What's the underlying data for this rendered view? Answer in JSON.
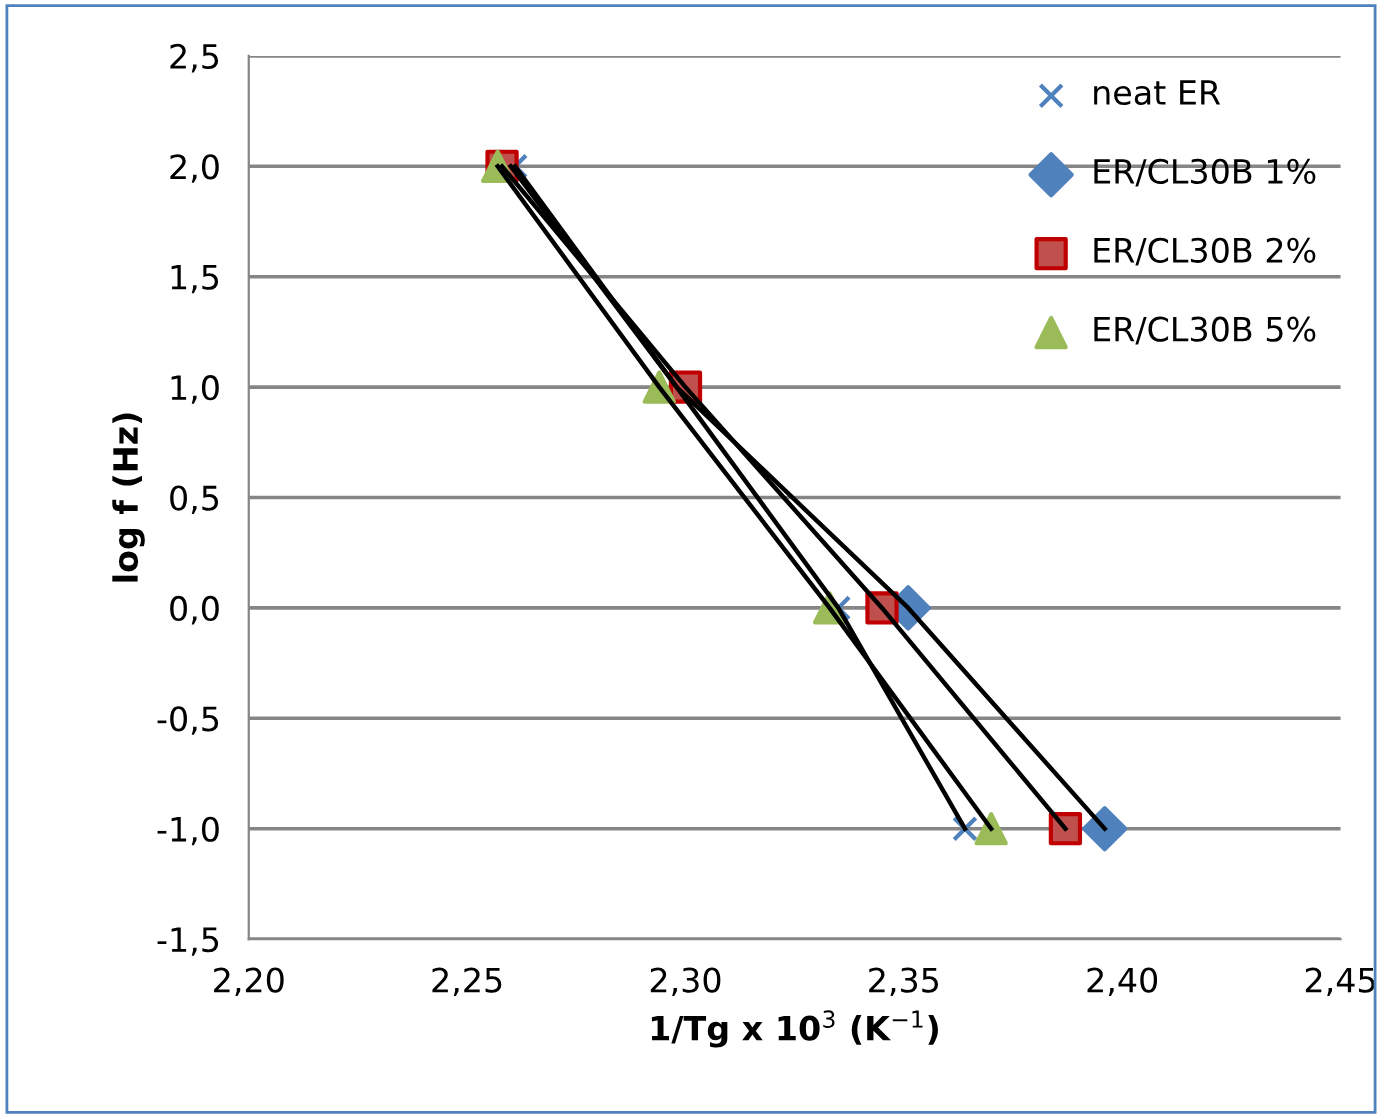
{
  "chart_data": {
    "type": "scatter",
    "xlabel": "1/Tg x 10$^{3}$ (K$^{−1}$)",
    "ylabel": "log f (Hz)",
    "xlim": [
      2.2,
      2.45
    ],
    "xticks": [
      {
        "value": 2.2,
        "label": "2,20"
      },
      {
        "value": 2.25,
        "label": "2,25"
      },
      {
        "value": 2.3,
        "label": "2,30"
      },
      {
        "value": 2.35,
        "label": "2,35"
      },
      {
        "value": 2.4,
        "label": "2,40"
      },
      {
        "value": 2.45,
        "label": "2,45"
      }
    ],
    "ylim": [
      -1.5,
      2.5
    ],
    "yticks": [
      {
        "value": -1.5,
        "label": "-1,5"
      },
      {
        "value": -1.0,
        "label": "-1,0"
      },
      {
        "value": -0.5,
        "label": "-0,5"
      },
      {
        "value": 0.0,
        "label": "0,0"
      },
      {
        "value": 0.5,
        "label": "0,5"
      },
      {
        "value": 1.0,
        "label": "1,0"
      },
      {
        "value": 1.5,
        "label": "1,5"
      },
      {
        "value": 2.0,
        "label": "2,0"
      },
      {
        "value": 2.5,
        "label": "2,5"
      }
    ],
    "grid": "y",
    "legend": "top right",
    "series": [
      {
        "type": "line",
        "color": "#000000",
        "marker": "none",
        "x": [
          2.261,
          2.298,
          2.335,
          2.364
        ],
        "values": [
          2,
          1,
          0,
          -1
        ]
      },
      {
        "type": "line",
        "color": "#000000",
        "marker": "none",
        "x": [
          2.26,
          2.298,
          2.351,
          2.396
        ],
        "values": [
          2,
          1,
          0,
          -1
        ]
      },
      {
        "type": "line",
        "color": "#000000",
        "marker": "none",
        "x": [
          2.258,
          2.3,
          2.345,
          2.387
        ],
        "values": [
          2,
          1,
          0,
          -1
        ]
      },
      {
        "type": "line",
        "color": "#000000",
        "marker": "none",
        "x": [
          2.257,
          2.294,
          2.333,
          2.37
        ],
        "values": [
          2,
          1,
          0,
          -1
        ]
      },
      {
        "name": "neat ER",
        "color": "#4f81bd",
        "marker": "cross",
        "x": [
          2.261,
          null,
          2.335,
          2.364
        ],
        "values": [
          2,
          null,
          0,
          -1
        ]
      },
      {
        "name": "ER/CL30B 1%",
        "color": "#4f81bd",
        "marker": "diamond",
        "x": [
          null,
          null,
          2.351,
          2.396
        ],
        "values": [
          null,
          null,
          0,
          -1
        ]
      },
      {
        "name": "ER/CL30B 2%",
        "color": "#c0504d",
        "marker": "square",
        "x": [
          2.258,
          2.3,
          2.345,
          2.387
        ],
        "values": [
          2,
          1,
          0,
          -1
        ]
      },
      {
        "name": "ER/CL30B 5%",
        "color": "#9bbb59",
        "marker": "triangle",
        "x": [
          2.257,
          2.294,
          2.333,
          2.37
        ],
        "values": [
          2,
          1,
          0,
          -1
        ]
      }
    ]
  }
}
